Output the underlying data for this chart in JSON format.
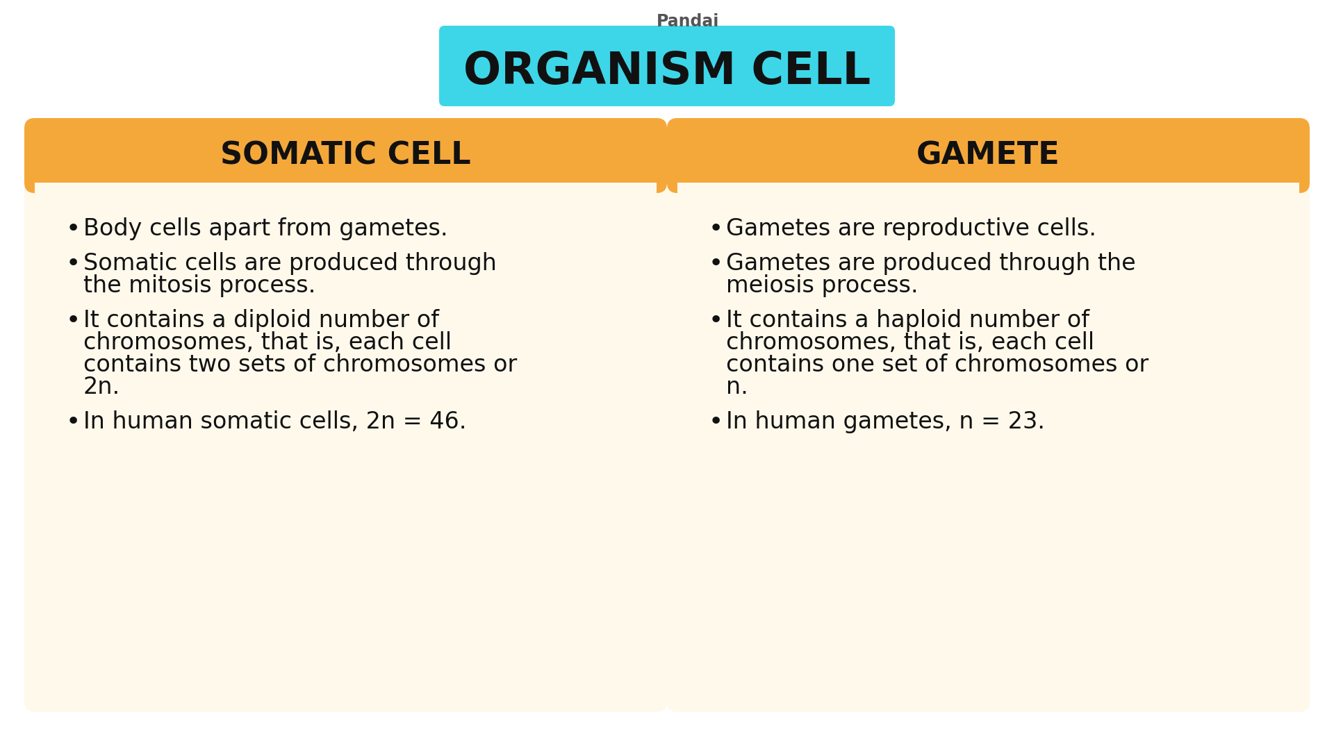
{
  "background_color": "#ffffff",
  "title_bg_color": "#3dd6e8",
  "title_text": "ORGANISM CELL",
  "title_color": "#111111",
  "pandai_text": "Pandai",
  "header_color": "#f5a83a",
  "card_bg_color": "#fff9ec",
  "left_header": "SOMATIC CELL",
  "right_header": "GAMETE",
  "header_text_color": "#111111",
  "bullet_text_color": "#111111",
  "left_bullets": [
    "Body cells apart from gametes.",
    "Somatic cells are produced through\nthe mitosis process.",
    "It contains a diploid number of\nchromosomes, that is, each cell\ncontains two sets of chromosomes or\n2n.",
    "In human somatic cells, 2n = 46."
  ],
  "right_bullets": [
    "Gametes are reproductive cells.",
    "Gametes are produced through the\nmeiosis process.",
    "It contains a haploid number of\nchromosomes, that is, each cell\ncontains one set of chromosomes or\nn.",
    "In human gametes, n = 23."
  ]
}
